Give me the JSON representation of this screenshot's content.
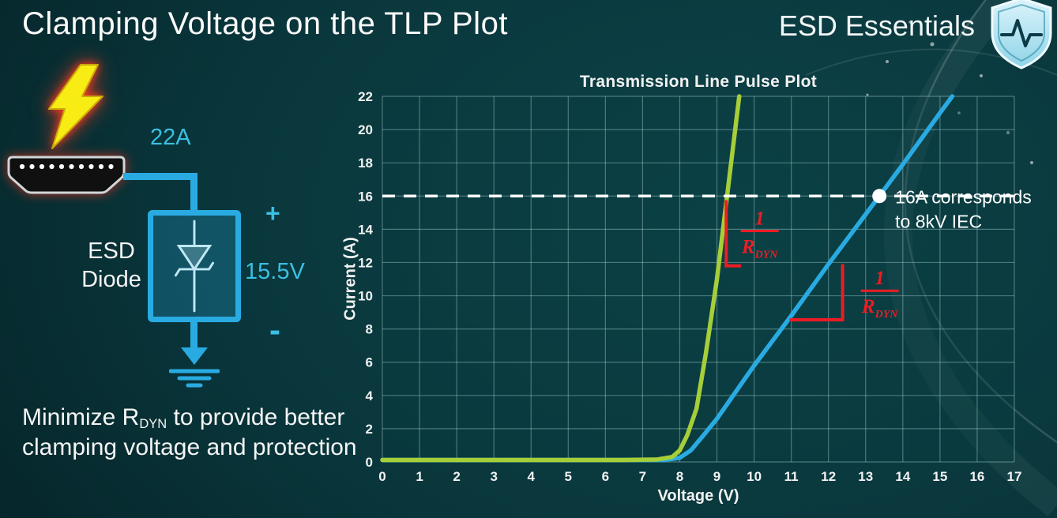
{
  "slide": {
    "title": "Clamping Voltage on the TLP Plot",
    "brand": "ESD Essentials"
  },
  "colors": {
    "wire_blue": "#29abe2",
    "label_cyan": "#3bbfe3",
    "annotation_red": "#ed1c24",
    "bolt_yellow": "#f7ec13"
  },
  "diagram": {
    "current_label": "22A",
    "component_label": [
      "ESD",
      "Diode"
    ],
    "plus_label": "+",
    "minus_label": "-",
    "voltage_label": "15.5V",
    "icons": [
      "lightning-bolt",
      "hdmi-connector",
      "zener-diode-symbol",
      "ground-symbol"
    ]
  },
  "footer_note": {
    "prefix": "Minimize R",
    "sub": "DYN",
    "suffix": " to provide better clamping voltage and protection"
  },
  "chart_data": {
    "type": "line",
    "title": "Transmission Line Pulse Plot",
    "xlabel": "Voltage (V)",
    "ylabel": "Current (A)",
    "xlim": [
      0,
      17
    ],
    "ylim": [
      0,
      22
    ],
    "x_tick_step": 1,
    "y_tick_step": 2,
    "grid": true,
    "grid_color": "rgba(168,208,208,0.42)",
    "legend": false,
    "series": [
      {
        "name": "high-rdyn-blue-curve",
        "color": "#29abe2",
        "points": [
          [
            0,
            0.12
          ],
          [
            7.6,
            0.12
          ],
          [
            8.0,
            0.25
          ],
          [
            8.3,
            0.7
          ],
          [
            8.6,
            1.5
          ],
          [
            9.0,
            2.6
          ],
          [
            9.5,
            4.2
          ],
          [
            10,
            5.8
          ],
          [
            11,
            8.8
          ],
          [
            12,
            11.9
          ],
          [
            13,
            14.9
          ],
          [
            13.37,
            16
          ],
          [
            14,
            17.9
          ],
          [
            15,
            21.0
          ],
          [
            15.33,
            22
          ]
        ]
      },
      {
        "name": "low-rdyn-green-curve",
        "color": "#a6ce39",
        "points": [
          [
            0,
            0.12
          ],
          [
            6.5,
            0.12
          ],
          [
            7.4,
            0.15
          ],
          [
            7.8,
            0.3
          ],
          [
            8.0,
            0.7
          ],
          [
            8.2,
            1.6
          ],
          [
            8.45,
            3.2
          ],
          [
            8.7,
            6.5
          ],
          [
            9.0,
            11
          ],
          [
            9.3,
            16.5
          ],
          [
            9.6,
            22
          ]
        ]
      }
    ],
    "annotations": {
      "accent_color": "#ed1c24",
      "threshold_line": {
        "y": 16,
        "style": "dashed",
        "color": "#ffffff"
      },
      "marker_point": {
        "x": 13.37,
        "y": 16
      },
      "marker_label": [
        "16A corresponds",
        "to 8kV IEC"
      ],
      "slope_markers": [
        {
          "numerator": "1",
          "denominator_base": "R",
          "denominator_sub": "DYN",
          "label_x": 10.15,
          "label_y": 13.9,
          "segments": [
            [
              9.25,
              15.75
            ],
            [
              9.25,
              11.8
            ],
            [
              9.65,
              11.8
            ]
          ]
        },
        {
          "numerator": "1",
          "denominator_base": "R",
          "denominator_sub": "DYN",
          "label_x": 13.38,
          "label_y": 10.3,
          "segments": [
            [
              10.95,
              8.55
            ],
            [
              12.38,
              8.55
            ],
            [
              12.38,
              11.9
            ]
          ]
        }
      ]
    }
  }
}
